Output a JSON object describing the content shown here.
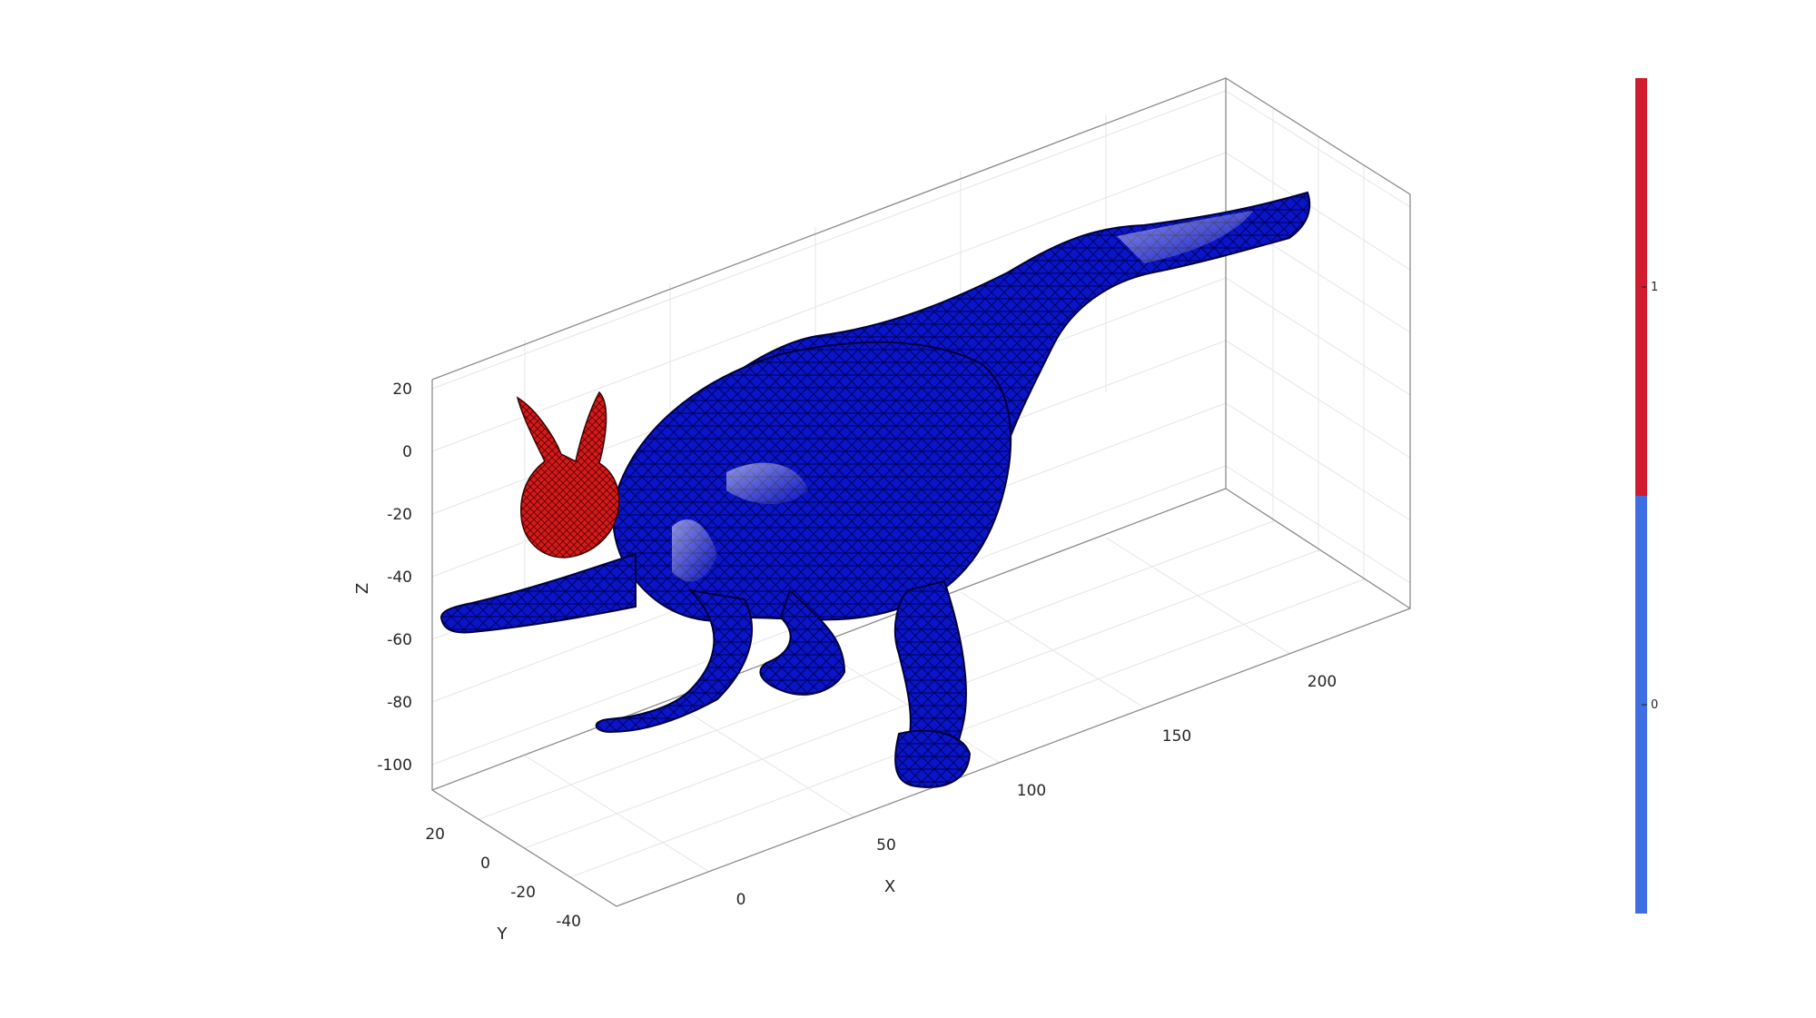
{
  "chart_data": {
    "type": "3d-surface",
    "title": "",
    "xlabel": "X",
    "ylabel": "Y",
    "zlabel": "Z",
    "xticks": [
      "0",
      "50",
      "100",
      "150",
      "200"
    ],
    "yticks": [
      "20",
      "0",
      "-20",
      "-40"
    ],
    "zticks": [
      "20",
      "0",
      "-20",
      "-40",
      "-60",
      "-80",
      "-100"
    ],
    "xlim": [
      -20,
      240
    ],
    "ylim": [
      -50,
      30
    ],
    "zlim": [
      -108,
      28
    ],
    "grid": true,
    "box": true,
    "objects": [
      {
        "name": "",
        "mesh": "rabbit-head",
        "label_value": 1,
        "color": "#d0202e"
      },
      {
        "name": "",
        "mesh": "dinosaur-body",
        "label_value": 0,
        "color": "#0000cc"
      }
    ],
    "colorbar": {
      "ticks": [
        "1",
        "0"
      ],
      "values": [
        1,
        0
      ],
      "colors": [
        "#d01c2e",
        "#3f6fe0"
      ],
      "placement": "right"
    }
  }
}
